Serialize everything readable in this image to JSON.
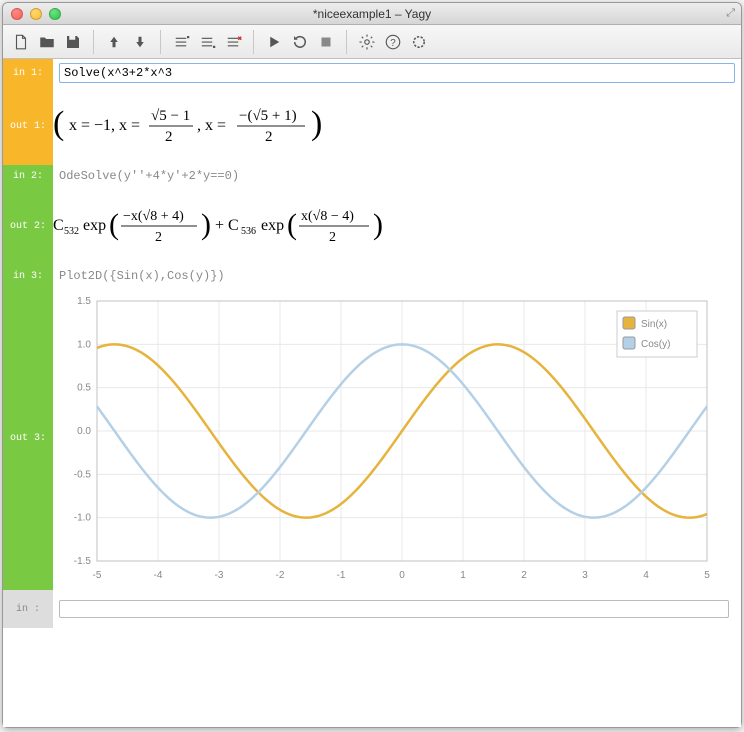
{
  "window": {
    "title": "*niceexample1 – Yagy"
  },
  "cells": {
    "in1": {
      "label": "in  1:",
      "text": "Solve(x^3+2*x^3"
    },
    "out1": {
      "label": "out 1:"
    },
    "in2": {
      "label": "in  2:",
      "text": "OdeSolve(y''+4*y'+2*y==0)"
    },
    "out2": {
      "label": "out 2:"
    },
    "in3": {
      "label": "in  3:",
      "text": "Plot2D({Sin(x),Cos(y)})"
    },
    "out3": {
      "label": "out 3:"
    },
    "in_blank": {
      "label": "in   :"
    }
  },
  "chart": {
    "type": "line",
    "xlim": [
      -5,
      5
    ],
    "ylim": [
      -1.5,
      1.5
    ],
    "xticks": [
      -5,
      -4,
      -3,
      -2,
      -1,
      0,
      1,
      2,
      3,
      4,
      5
    ],
    "yticks": [
      -1.5,
      -1.0,
      -0.5,
      0.0,
      0.5,
      1.0,
      1.5
    ],
    "grid_color": "#e8e8e8",
    "border_color": "#c0c0c0",
    "background_color": "#ffffff",
    "line_width": 2.5,
    "series": [
      {
        "name": "Sin(x)",
        "color": "#e6b33c",
        "fn": "sin"
      },
      {
        "name": "Cos(y)",
        "color": "#b4d0e7",
        "fn": "cos"
      }
    ],
    "legend": {
      "position": "top-right",
      "stroke": "#ccc"
    }
  },
  "colors": {
    "amber": "#f8b62a",
    "green": "#7ac943",
    "gray": "#dddddd"
  }
}
